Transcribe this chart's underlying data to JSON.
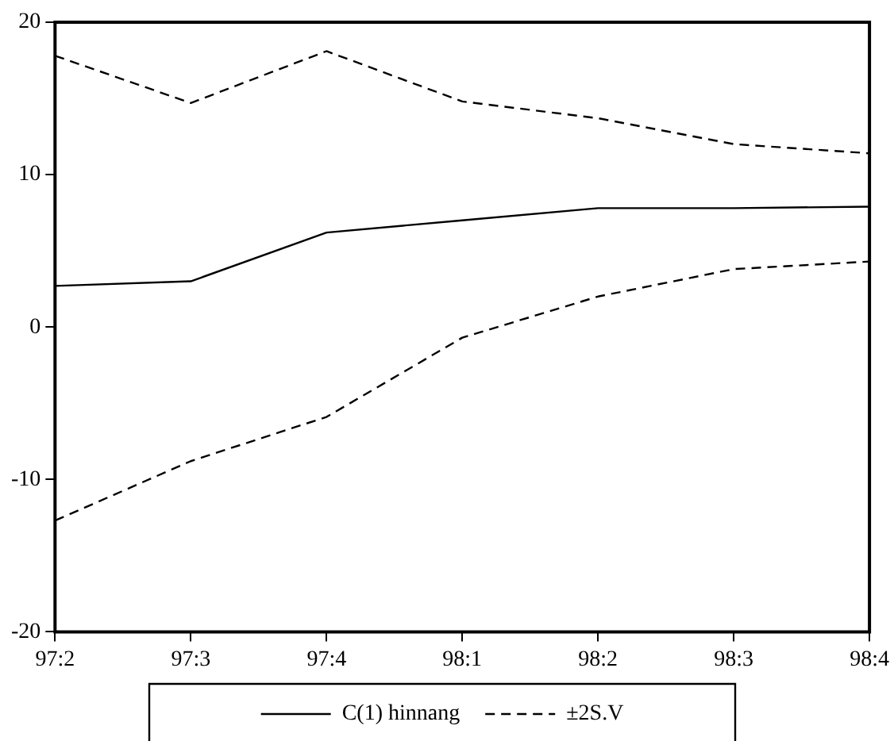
{
  "chart_data": {
    "type": "line",
    "categories": [
      "97:2",
      "97:3",
      "97:4",
      "98:1",
      "98:2",
      "98:3",
      "98:4"
    ],
    "series": [
      {
        "name": "C(1) hinnang",
        "color": "#000000",
        "line_style": "solid",
        "values": [
          2.7,
          3.0,
          6.2,
          7.0,
          7.8,
          7.8,
          7.9
        ]
      },
      {
        "name": "±2S.V",
        "color": "#000000",
        "line_style": "dashed",
        "values": [
          17.8,
          14.7,
          18.1,
          14.8,
          13.7,
          12.0,
          11.4
        ]
      },
      {
        "color": "#000000",
        "line_style": "dashed",
        "values": [
          -12.7,
          -8.8,
          -5.9,
          -0.7,
          2.0,
          3.8,
          4.3
        ]
      }
    ],
    "ylim": [
      -20,
      20
    ],
    "yticks": [
      -20,
      -10,
      0,
      10,
      20
    ],
    "grid": false,
    "legend": "bottom",
    "marker": "none"
  }
}
